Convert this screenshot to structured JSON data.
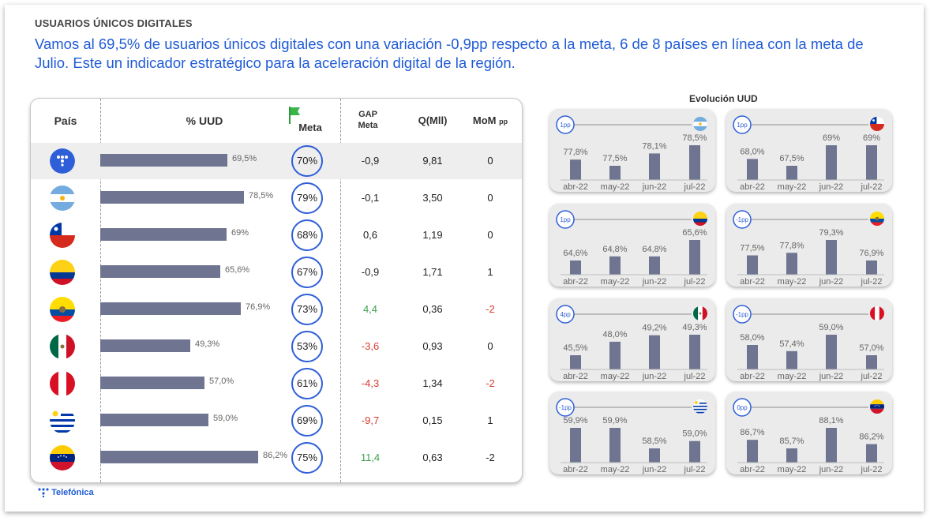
{
  "header": {
    "kicker": "USUARIOS ÚNICOS DIGITALES",
    "headline": "Vamos al 69,5% de usuarios únicos digitales con una variación -0,9pp respecto a la meta, 6 de 8 países en línea con la meta de Julio. Este un indicador estratégico para la aceleración digital de la región."
  },
  "table": {
    "columns": {
      "pais": "País",
      "uud": "% UUD",
      "meta": "Meta",
      "gap_l1": "GAP",
      "gap_l2": "Meta",
      "q": "Q(Mll)",
      "mom": "MoM",
      "mom_unit": "pp"
    },
    "rows": [
      {
        "flag": "telefonica-logo-icon",
        "uud": 69.5,
        "uud_label": "69,5%",
        "meta": "70%",
        "gap": "-0,9",
        "gap_color": "#222222",
        "q": "9,81",
        "mom": "0",
        "mom_color": "#222222"
      },
      {
        "flag": "argentina-flag-icon",
        "uud": 78.5,
        "uud_label": "78,5%",
        "meta": "79%",
        "gap": "-0,1",
        "gap_color": "#222222",
        "q": "3,50",
        "mom": "0",
        "mom_color": "#222222"
      },
      {
        "flag": "chile-flag-icon",
        "uud": 69,
        "uud_label": "69%",
        "meta": "68%",
        "gap": "0,6",
        "gap_color": "#222222",
        "q": "1,19",
        "mom": "0",
        "mom_color": "#222222"
      },
      {
        "flag": "colombia-flag-icon",
        "uud": 65.6,
        "uud_label": "65,6%",
        "meta": "67%",
        "gap": "-0,9",
        "gap_color": "#222222",
        "q": "1,71",
        "mom": "1",
        "mom_color": "#222222"
      },
      {
        "flag": "ecuador-flag-icon",
        "uud": 76.9,
        "uud_label": "76,9%",
        "meta": "73%",
        "gap": "4,4",
        "gap_color": "#3ea34a",
        "q": "0,36",
        "mom": "-2",
        "mom_color": "#d63b2f"
      },
      {
        "flag": "mexico-flag-icon",
        "uud": 49.3,
        "uud_label": "49,3%",
        "meta": "53%",
        "gap": "-3,6",
        "gap_color": "#d63b2f",
        "q": "0,93",
        "mom": "0",
        "mom_color": "#222222"
      },
      {
        "flag": "peru-flag-icon",
        "uud": 57.0,
        "uud_label": "57,0%",
        "meta": "61%",
        "gap": "-4,3",
        "gap_color": "#d63b2f",
        "q": "1,34",
        "mom": "-2",
        "mom_color": "#d63b2f"
      },
      {
        "flag": "uruguay-flag-icon",
        "uud": 59.0,
        "uud_label": "59,0%",
        "meta": "69%",
        "gap": "-9,7",
        "gap_color": "#d63b2f",
        "q": "0,15",
        "mom": "1",
        "mom_color": "#222222"
      },
      {
        "flag": "venezuela-flag-icon",
        "uud": 86.2,
        "uud_label": "86,2%",
        "meta": "75%",
        "gap": "11,4",
        "gap_color": "#3ea34a",
        "q": "0,63",
        "mom": "-2",
        "mom_color": "#222222"
      }
    ]
  },
  "evolution_title": "Evolución UUD",
  "chart_data": [
    {
      "type": "bar",
      "flag": "argentina-flag-icon",
      "badge": "1pp",
      "categories": [
        "abr-22",
        "may-22",
        "jun-22",
        "jul-22"
      ],
      "values": [
        77.8,
        77.5,
        78.1,
        78.5
      ],
      "labels": [
        "77,8%",
        "77,5%",
        "78,1%",
        "78,5%"
      ],
      "bar_color": "#6f7590"
    },
    {
      "type": "bar",
      "flag": "chile-flag-icon",
      "badge": "1pp",
      "categories": [
        "abr-22",
        "may-22",
        "jun-22",
        "jul-22"
      ],
      "values": [
        68.0,
        67.5,
        69,
        69
      ],
      "labels": [
        "68,0%",
        "67,5%",
        "69%",
        "69%"
      ],
      "bar_color": "#6f7590"
    },
    {
      "type": "bar",
      "flag": "colombia-flag-icon",
      "badge": "1pp",
      "categories": [
        "abr-22",
        "may-22",
        "jun-22",
        "jul-22"
      ],
      "values": [
        64.6,
        64.8,
        64.8,
        65.6
      ],
      "labels": [
        "64,6%",
        "64,8%",
        "64,8%",
        "65,6%"
      ],
      "bar_color": "#6f7590"
    },
    {
      "type": "bar",
      "flag": "ecuador-flag-icon",
      "badge": "-1pp",
      "categories": [
        "abr-22",
        "may-22",
        "jun-22",
        "jul-22"
      ],
      "values": [
        77.5,
        77.8,
        79.3,
        76.9
      ],
      "labels": [
        "77,5%",
        "77,8%",
        "79,3%",
        "76,9%"
      ],
      "bar_color": "#6f7590"
    },
    {
      "type": "bar",
      "flag": "mexico-flag-icon",
      "badge": "4pp",
      "categories": [
        "abr-22",
        "may-22",
        "jun-22",
        "jul-22"
      ],
      "values": [
        45.5,
        48.0,
        49.2,
        49.3
      ],
      "labels": [
        "45,5%",
        "48,0%",
        "49,2%",
        "49,3%"
      ],
      "bar_color": "#6f7590"
    },
    {
      "type": "bar",
      "flag": "peru-flag-icon",
      "badge": "-1pp",
      "categories": [
        "abr-22",
        "may-22",
        "jun-22",
        "jul-22"
      ],
      "values": [
        58.0,
        57.4,
        59.0,
        57.0
      ],
      "labels": [
        "58,0%",
        "57,4%",
        "59,0%",
        "57,0%"
      ],
      "bar_color": "#6f7590"
    },
    {
      "type": "bar",
      "flag": "uruguay-flag-icon",
      "badge": "-1pp",
      "categories": [
        "abr-22",
        "may-22",
        "jun-22",
        "jul-22"
      ],
      "values": [
        59.9,
        59.9,
        58.5,
        59.0
      ],
      "labels": [
        "59,9%",
        "59,9%",
        "58,5%",
        "59,0%"
      ],
      "bar_color": "#6f7590"
    },
    {
      "type": "bar",
      "flag": "venezuela-flag-icon",
      "badge": "0pp",
      "categories": [
        "abr-22",
        "may-22",
        "jun-22",
        "jul-22"
      ],
      "values": [
        86.7,
        85.7,
        88.1,
        86.2
      ],
      "labels": [
        "86,7%",
        "85,7%",
        "88,1%",
        "86,2%"
      ],
      "bar_color": "#6f7590"
    }
  ],
  "footer": {
    "brand": "Telefónica"
  },
  "colors": {
    "accent": "#1F5BD6",
    "bar": "#6f7590",
    "positive": "#3ea34a",
    "negative": "#d63b2f"
  }
}
